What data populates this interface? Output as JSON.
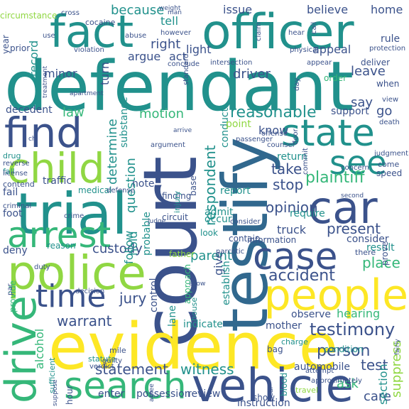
{
  "palette": {
    "purple": "#440154",
    "indigo": "#3b528b",
    "blue": "#31688e",
    "teal": "#21918c",
    "green": "#35b779",
    "lime": "#90d743",
    "yellow": "#fde725"
  },
  "words": [
    {
      "text": "defendant",
      "color": "teal"
    },
    {
      "text": "court",
      "color": "indigo"
    },
    {
      "text": "evidence",
      "color": "yellow"
    },
    {
      "text": "testify",
      "color": "blue"
    },
    {
      "text": "officer",
      "color": "teal"
    },
    {
      "text": "trial",
      "color": "teal"
    },
    {
      "text": "police",
      "color": "lime"
    },
    {
      "text": "vehicle",
      "color": "indigo"
    },
    {
      "text": "find",
      "color": "indigo"
    },
    {
      "text": "people",
      "color": "yellow"
    },
    {
      "text": "car",
      "color": "indigo"
    },
    {
      "text": "child",
      "color": "lime"
    },
    {
      "text": "fact",
      "color": "teal"
    },
    {
      "text": "state",
      "color": "teal"
    },
    {
      "text": "case",
      "color": "indigo"
    },
    {
      "text": "arrest",
      "color": "green"
    },
    {
      "text": "search",
      "color": "green"
    },
    {
      "text": "drive",
      "color": "green"
    },
    {
      "text": "time",
      "color": "indigo"
    },
    {
      "text": "see",
      "color": "teal"
    },
    {
      "text": "testimony",
      "color": "indigo"
    },
    {
      "text": "plaintiff",
      "color": "green"
    },
    {
      "text": "person",
      "color": "indigo"
    },
    {
      "text": "reasonable",
      "color": "teal"
    },
    {
      "text": "accident",
      "color": "indigo"
    },
    {
      "text": "warrant",
      "color": "indigo"
    },
    {
      "text": "statement",
      "color": "indigo"
    },
    {
      "text": "witness",
      "color": "teal"
    },
    {
      "text": "opinion",
      "color": "indigo"
    },
    {
      "text": "jury",
      "color": "indigo"
    },
    {
      "text": "place",
      "color": "green"
    },
    {
      "text": "present",
      "color": "indigo"
    },
    {
      "text": "custody",
      "color": "indigo"
    },
    {
      "text": "parent",
      "color": "teal"
    },
    {
      "text": "care",
      "color": "indigo"
    },
    {
      "text": "test",
      "color": "indigo"
    },
    {
      "text": "take",
      "color": "indigo"
    },
    {
      "text": "stop",
      "color": "indigo"
    },
    {
      "text": "motion",
      "color": "green"
    },
    {
      "text": "because",
      "color": "teal"
    },
    {
      "text": "right",
      "color": "indigo"
    },
    {
      "text": "driver",
      "color": "indigo"
    },
    {
      "text": "law",
      "color": "green"
    },
    {
      "text": "respondent",
      "color": "teal"
    },
    {
      "text": "determine",
      "color": "teal"
    },
    {
      "text": "question",
      "color": "teal"
    },
    {
      "text": "ask",
      "color": "green"
    },
    {
      "text": "go",
      "color": "indigo"
    },
    {
      "text": "say",
      "color": "indigo"
    },
    {
      "text": "tell",
      "color": "teal"
    },
    {
      "text": "minor",
      "color": "indigo"
    },
    {
      "text": "light",
      "color": "indigo"
    },
    {
      "text": "know",
      "color": "indigo"
    },
    {
      "text": "leave",
      "color": "indigo"
    },
    {
      "text": "home",
      "color": "indigo"
    },
    {
      "text": "believe",
      "color": "indigo"
    },
    {
      "text": "issue",
      "color": "indigo"
    },
    {
      "text": "record",
      "color": "teal"
    },
    {
      "text": "alcohol",
      "color": "green"
    },
    {
      "text": "hold",
      "color": "teal"
    },
    {
      "text": "give",
      "color": "indigo"
    },
    {
      "text": "truck",
      "color": "indigo"
    },
    {
      "text": "hearing",
      "color": "green"
    },
    {
      "text": "follow",
      "color": "teal"
    },
    {
      "text": "suppress",
      "color": "lime"
    },
    {
      "text": "section",
      "color": "teal"
    },
    {
      "text": "consider",
      "color": "indigo"
    },
    {
      "text": "mother",
      "color": "indigo"
    },
    {
      "text": "note",
      "color": "indigo"
    },
    {
      "text": "decedent",
      "color": "indigo"
    },
    {
      "text": "support",
      "color": "indigo"
    },
    {
      "text": "report",
      "color": "teal"
    },
    {
      "text": "occur",
      "color": "teal"
    },
    {
      "text": "admit",
      "color": "teal"
    },
    {
      "text": "require",
      "color": "teal"
    },
    {
      "text": "result",
      "color": "teal"
    },
    {
      "text": "observe",
      "color": "indigo"
    },
    {
      "text": "indicate",
      "color": "teal"
    },
    {
      "text": "establish",
      "color": "teal"
    },
    {
      "text": "probable",
      "color": "teal"
    },
    {
      "text": "control",
      "color": "indigo"
    },
    {
      "text": "lane",
      "color": "teal"
    },
    {
      "text": "automobile",
      "color": "indigo"
    },
    {
      "text": "instruction",
      "color": "indigo"
    },
    {
      "text": "possession",
      "color": "indigo"
    },
    {
      "text": "enter",
      "color": "indigo"
    },
    {
      "text": "review",
      "color": "indigo"
    },
    {
      "text": "hour",
      "color": "indigo"
    },
    {
      "text": "return",
      "color": "teal"
    },
    {
      "text": "conduct",
      "color": "teal"
    },
    {
      "text": "appeal",
      "color": "indigo"
    },
    {
      "text": "argue",
      "color": "indigo"
    },
    {
      "text": "act",
      "color": "indigo"
    },
    {
      "text": "turn",
      "color": "indigo"
    },
    {
      "text": "traffic",
      "color": "indigo"
    },
    {
      "text": "medical",
      "color": "teal"
    },
    {
      "text": "fail",
      "color": "indigo"
    },
    {
      "text": "foot",
      "color": "indigo"
    },
    {
      "text": "deny",
      "color": "indigo"
    },
    {
      "text": "reason",
      "color": "teal"
    },
    {
      "text": "prove",
      "color": "indigo"
    },
    {
      "text": "point",
      "color": "lime"
    },
    {
      "text": "substance",
      "color": "teal"
    },
    {
      "text": "prior",
      "color": "indigo"
    },
    {
      "text": "year",
      "color": "indigo"
    },
    {
      "text": "circumstance",
      "color": "lime"
    },
    {
      "text": "rule",
      "color": "indigo"
    },
    {
      "text": "when",
      "color": "indigo"
    },
    {
      "text": "order",
      "color": "green"
    },
    {
      "text": "deliver",
      "color": "indigo"
    },
    {
      "text": "speed",
      "color": "indigo"
    },
    {
      "text": "come",
      "color": "indigo"
    },
    {
      "text": "contend",
      "color": "indigo"
    },
    {
      "text": "drug",
      "color": "teal"
    },
    {
      "text": "fall",
      "color": "teal"
    },
    {
      "text": "finding",
      "color": "indigo"
    },
    {
      "text": "base",
      "color": "indigo"
    },
    {
      "text": "circuit",
      "color": "indigo"
    },
    {
      "text": "contain",
      "color": "indigo"
    },
    {
      "text": "look",
      "color": "teal"
    },
    {
      "text": "information",
      "color": "indigo"
    },
    {
      "text": "father",
      "color": "lime"
    },
    {
      "text": "provide",
      "color": "green"
    },
    {
      "text": "condition",
      "color": "teal"
    },
    {
      "text": "bag",
      "color": "indigo"
    },
    {
      "text": "mile",
      "color": "indigo"
    },
    {
      "text": "charge",
      "color": "teal"
    },
    {
      "text": "injury",
      "color": "teal"
    },
    {
      "text": "approach",
      "color": "green"
    },
    {
      "text": "there",
      "color": "indigo"
    },
    {
      "text": "statute",
      "color": "teal"
    },
    {
      "text": "guilty",
      "color": "indigo"
    },
    {
      "text": "verdict",
      "color": "indigo"
    },
    {
      "text": "show",
      "color": "indigo"
    },
    {
      "text": "blood",
      "color": "teal"
    },
    {
      "text": "sufficient",
      "color": "teal"
    },
    {
      "text": "travel",
      "color": "lime"
    },
    {
      "text": "house",
      "color": "teal"
    },
    {
      "text": "crime",
      "color": "indigo"
    },
    {
      "text": "criminal",
      "color": "indigo"
    },
    {
      "text": "cocaine",
      "color": "indigo"
    },
    {
      "text": "abuse",
      "color": "indigo"
    },
    {
      "text": "however",
      "color": "indigo"
    },
    {
      "text": "intersection",
      "color": "indigo"
    },
    {
      "text": "conclude",
      "color": "indigo"
    },
    {
      "text": "violation",
      "color": "indigo"
    },
    {
      "text": "claim",
      "color": "indigo"
    },
    {
      "text": "weight",
      "color": "indigo"
    },
    {
      "text": "cross",
      "color": "indigo"
    },
    {
      "text": "use",
      "color": "indigo"
    },
    {
      "text": "hear",
      "color": "indigo"
    },
    {
      "text": "call",
      "color": "indigo"
    },
    {
      "text": "appear",
      "color": "indigo"
    },
    {
      "text": "physical",
      "color": "indigo"
    },
    {
      "text": "protection",
      "color": "indigo"
    },
    {
      "text": "day",
      "color": "indigo"
    },
    {
      "text": "view",
      "color": "indigo"
    },
    {
      "text": "death",
      "color": "indigo"
    },
    {
      "text": "concern",
      "color": "indigo"
    },
    {
      "text": "judgment",
      "color": "indigo"
    },
    {
      "text": "commit",
      "color": "indigo"
    },
    {
      "text": "door",
      "color": "indigo"
    },
    {
      "text": "counsel",
      "color": "indigo"
    },
    {
      "text": "passenger",
      "color": "indigo"
    },
    {
      "text": "offense",
      "color": "indigo"
    },
    {
      "text": "narcotic",
      "color": "indigo"
    },
    {
      "text": "duty",
      "color": "indigo"
    },
    {
      "text": "decision",
      "color": "indigo"
    },
    {
      "text": "par",
      "color": "indigo"
    },
    {
      "text": "attempt",
      "color": "indigo"
    },
    {
      "text": "approximately",
      "color": "indigo"
    },
    {
      "text": "license",
      "color": "indigo"
    },
    {
      "text": "reverse",
      "color": "indigo"
    },
    {
      "text": "argument",
      "color": "indigo"
    },
    {
      "text": "standard",
      "color": "indigo"
    },
    {
      "text": "apartment",
      "color": "indigo"
    },
    {
      "text": "treatment",
      "color": "indigo"
    },
    {
      "text": "second",
      "color": "indigo"
    },
    {
      "text": "consider",
      "color": "indigo"
    },
    {
      "text": "defense",
      "color": "indigo"
    },
    {
      "text": "allow",
      "color": "indigo"
    },
    {
      "text": "clear",
      "color": "indigo"
    },
    {
      "text": "agree",
      "color": "indigo"
    },
    {
      "text": "suppose",
      "color": "indigo"
    },
    {
      "text": "fairly",
      "color": "indigo"
    },
    {
      "text": "arrive",
      "color": "indigo"
    },
    {
      "text": "ch",
      "color": "indigo"
    },
    {
      "text": "judge",
      "color": "indigo"
    },
    {
      "text": "man",
      "color": "indigo"
    }
  ]
}
